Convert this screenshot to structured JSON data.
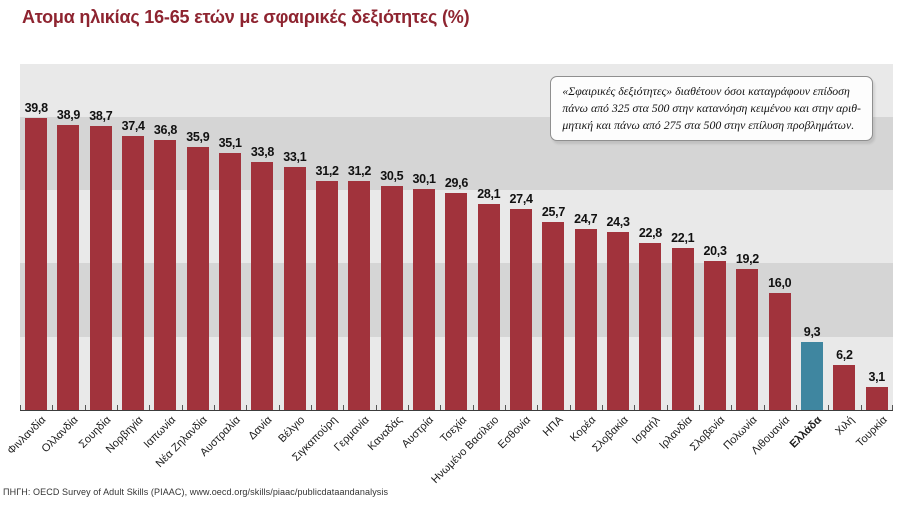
{
  "chart_data": {
    "type": "bar",
    "title": "Ατομα ηλικίας 16-65 ετών με σφαιρικές δεξιότητες (%)",
    "categories": [
      "Φινλανδία",
      "Ολλανδία",
      "Σουηδία",
      "Νορβηγία",
      "Ιαπωνία",
      "Νέα Ζηλανδία",
      "Αυστραλία",
      "Δανία",
      "Βέλγιο",
      "Σιγκαπούρη",
      "Γερμανία",
      "Καναδάς",
      "Αυστρία",
      "Τσεχία",
      "Ηνωμένο Βασίλειο",
      "Εσθονία",
      "ΗΠΑ",
      "Κορέα",
      "Σλοβακία",
      "Ισραήλ",
      "Ιρλανδία",
      "Σλοβενία",
      "Πολωνία",
      "Λιθουανία",
      "Ελλάδα",
      "Χιλή",
      "Τουρκία"
    ],
    "values": [
      39.8,
      38.9,
      38.7,
      37.4,
      36.8,
      35.9,
      35.1,
      33.8,
      33.1,
      31.2,
      31.2,
      30.5,
      30.1,
      29.6,
      28.1,
      27.4,
      25.7,
      24.7,
      24.3,
      22.8,
      22.1,
      20.3,
      19.2,
      16.0,
      9.3,
      6.2,
      3.1
    ],
    "value_labels": [
      "39,8",
      "38,9",
      "38,7",
      "37,4",
      "36,8",
      "35,9",
      "35,1",
      "33,8",
      "33,1",
      "31,2",
      "31,2",
      "30,5",
      "30,1",
      "29,6",
      "28,1",
      "27,4",
      "25,7",
      "24,7",
      "24,3",
      "22,8",
      "22,1",
      "20,3",
      "19,2",
      "16,0",
      "9,3",
      "6,2",
      "3,1"
    ],
    "highlight_index": 24,
    "highlight_category": "Ελλάδα",
    "xlabel": "",
    "ylabel": "",
    "ylim": [
      0,
      47.2
    ],
    "band_step": 10,
    "band_colors": [
      "#e9e9e9",
      "#d5d5d5"
    ],
    "bar_color": "#a1333c",
    "highlight_color": "#3f86a0",
    "grid": "horizontal-bands",
    "legend": "none"
  },
  "note": {
    "lines": [
      "«Σφαιρικές δεξιότητες» διαθέτουν όσοι καταγράφουν επίδοση",
      "πάνω από 325 στα 500 στην κατανόηση κειμένου και στην αριθ-",
      "μητική και πάνω από 275 στα 500 στην επίλυση προβλημάτων."
    ]
  },
  "footer": {
    "text": "ΠΗΓΗ: OECD Survey of Adult Skills (PIAAC), www.oecd.org/skills/piaac/publicdataandanalysis"
  },
  "colors": {
    "title": "#8e2430",
    "axis": "#3c3c3c",
    "value_label": "#111111",
    "category_label": "#1c1c1c",
    "tick": "#555555"
  }
}
